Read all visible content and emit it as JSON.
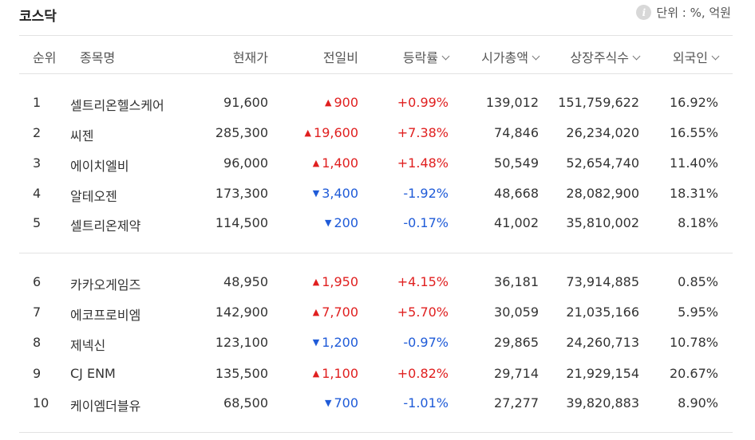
{
  "title": "코스닥",
  "unit": "단위 : %, 억원",
  "info_icon": "info-icon",
  "colors": {
    "up": "#e01f1f",
    "down": "#1f5bd8"
  },
  "headers": {
    "rank": "순위",
    "name": "종목명",
    "price": "현재가",
    "change": "전일비",
    "rate": "등락률",
    "cap": "시가총액",
    "shares": "상장주식수",
    "foreign": "외국인"
  },
  "rows": [
    {
      "rank": "1",
      "name": "셀트리온헬스케어",
      "price": "91,600",
      "change": "900",
      "dir": "up",
      "rate": "+0.99%",
      "cap": "139,012",
      "shares": "151,759,622",
      "foreign": "16.92%"
    },
    {
      "rank": "2",
      "name": "씨젠",
      "price": "285,300",
      "change": "19,600",
      "dir": "up",
      "rate": "+7.38%",
      "cap": "74,846",
      "shares": "26,234,020",
      "foreign": "16.55%"
    },
    {
      "rank": "3",
      "name": "에이치엘비",
      "price": "96,000",
      "change": "1,400",
      "dir": "up",
      "rate": "+1.48%",
      "cap": "50,549",
      "shares": "52,654,740",
      "foreign": "11.40%"
    },
    {
      "rank": "4",
      "name": "알테오젠",
      "price": "173,300",
      "change": "3,400",
      "dir": "down",
      "rate": "-1.92%",
      "cap": "48,668",
      "shares": "28,082,900",
      "foreign": "18.31%"
    },
    {
      "rank": "5",
      "name": "셀트리온제약",
      "price": "114,500",
      "change": "200",
      "dir": "down",
      "rate": "-0.17%",
      "cap": "41,002",
      "shares": "35,810,002",
      "foreign": "8.18%"
    },
    {
      "rank": "6",
      "name": "카카오게임즈",
      "price": "48,950",
      "change": "1,950",
      "dir": "up",
      "rate": "+4.15%",
      "cap": "36,181",
      "shares": "73,914,885",
      "foreign": "0.85%"
    },
    {
      "rank": "7",
      "name": "에코프로비엠",
      "price": "142,900",
      "change": "7,700",
      "dir": "up",
      "rate": "+5.70%",
      "cap": "30,059",
      "shares": "21,035,166",
      "foreign": "5.95%"
    },
    {
      "rank": "8",
      "name": "제넥신",
      "price": "123,100",
      "change": "1,200",
      "dir": "down",
      "rate": "-0.97%",
      "cap": "29,865",
      "shares": "24,260,713",
      "foreign": "10.78%"
    },
    {
      "rank": "9",
      "name": "CJ ENM",
      "price": "135,500",
      "change": "1,100",
      "dir": "up",
      "rate": "+0.82%",
      "cap": "29,714",
      "shares": "21,929,154",
      "foreign": "20.67%"
    },
    {
      "rank": "10",
      "name": "케이엠더블유",
      "price": "68,500",
      "change": "700",
      "dir": "down",
      "rate": "-1.01%",
      "cap": "27,277",
      "shares": "39,820,883",
      "foreign": "8.90%"
    }
  ]
}
